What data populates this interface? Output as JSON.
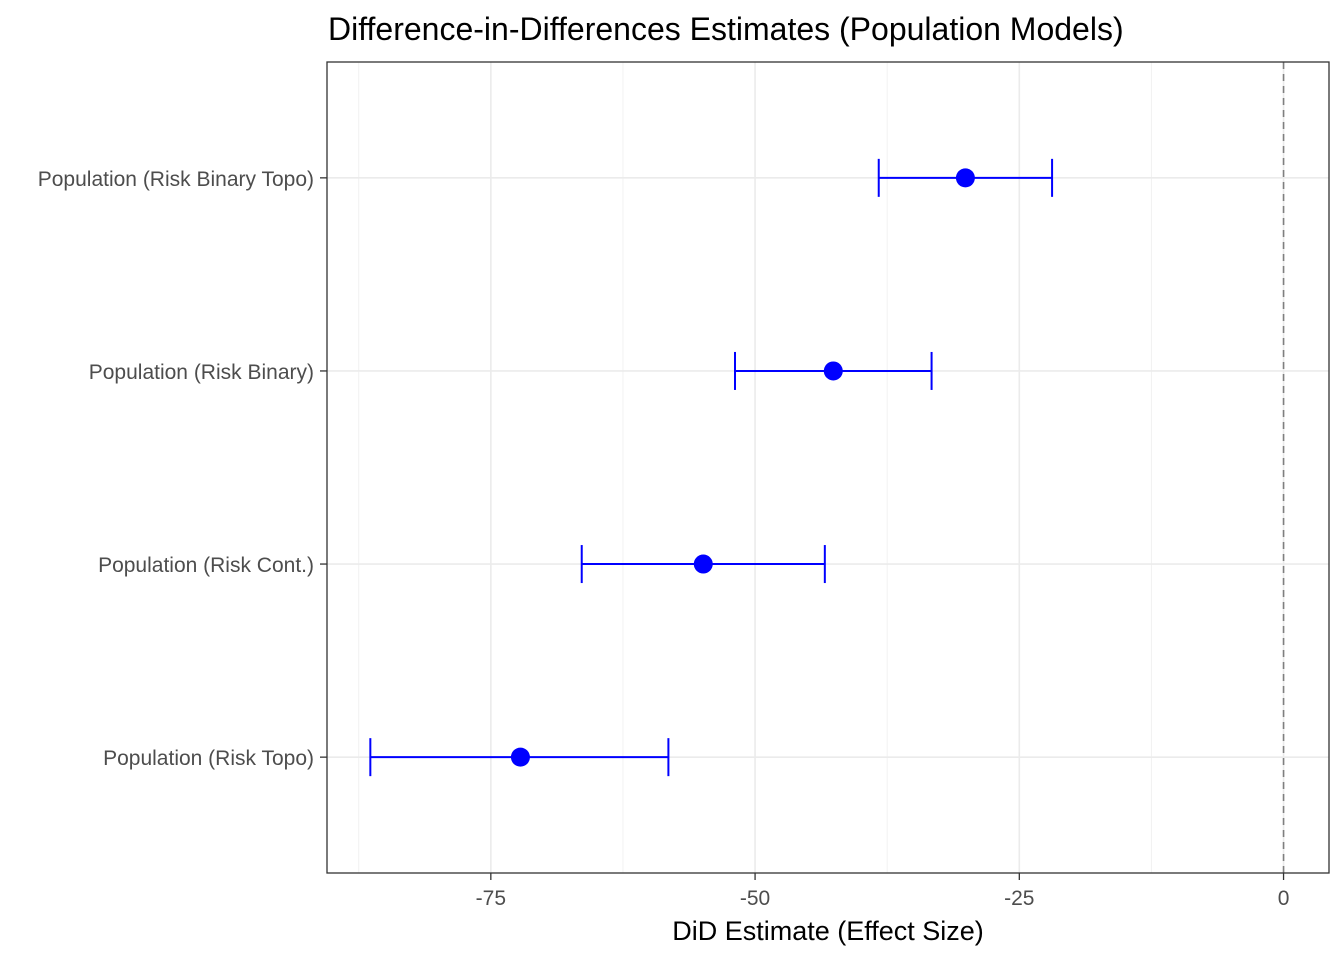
{
  "chart_data": {
    "type": "scatter",
    "subtype": "point-errorbar",
    "title": "Difference-in-Differences Estimates (Population Models)",
    "xlabel": "DiD Estimate (Effect Size)",
    "ylabel": "",
    "xlim": [
      -90.5,
      4.3
    ],
    "xticks": [
      -75,
      -50,
      -25,
      0
    ],
    "xtick_labels": [
      "-75",
      "-50",
      "-25",
      "0"
    ],
    "reference_line": {
      "x": 0,
      "style": "dashed",
      "color": "#7f7f7f"
    },
    "grid": true,
    "color": "#0000ff",
    "categories": [
      "Population (Risk Binary Topo)",
      "Population (Risk Binary)",
      "Population (Risk Cont.)",
      "Population (Risk Topo)"
    ],
    "estimates": [
      -30.1,
      -42.6,
      -54.9,
      -72.2
    ],
    "ci_lower": [
      -38.3,
      -51.9,
      -66.4,
      -86.4
    ],
    "ci_upper": [
      -21.9,
      -33.3,
      -43.4,
      -58.2
    ]
  }
}
